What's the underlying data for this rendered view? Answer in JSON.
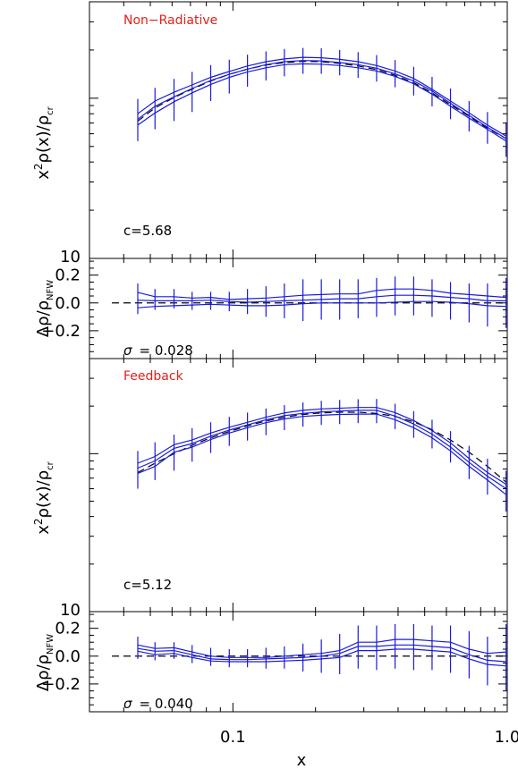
{
  "colors": {
    "series": "#1a1adc",
    "title": "#e0201c",
    "reference": "#000000"
  },
  "xaxis": {
    "label": "x",
    "scale": "log",
    "range": [
      0.03,
      1.0
    ],
    "ticks": [
      {
        "v": 0.1,
        "label": "0.1"
      },
      {
        "v": 1.0,
        "label": "1.0"
      }
    ]
  },
  "chart_data": [
    {
      "type": "line",
      "title": "Non−Radiative",
      "ylabel": "x²ρ(x)/ρcr",
      "ylabel_main": "x",
      "ylabel_sup": "2",
      "ylabel_rest": "ρ(x)/ρ",
      "ylabel_sub": "cr",
      "yscale": "log",
      "ylim": [
        10,
        400
      ],
      "ytick_label": "10",
      "annotation": "c=5.68",
      "x": [
        0.045,
        0.052,
        0.061,
        0.071,
        0.083,
        0.097,
        0.113,
        0.132,
        0.154,
        0.18,
        0.21,
        0.245,
        0.286,
        0.334,
        0.39,
        0.456,
        0.532,
        0.621,
        0.726,
        0.847,
        0.99
      ],
      "series": [
        {
          "values": [
            80,
            96,
            109,
            121,
            135,
            147,
            159,
            169,
            176,
            180,
            179,
            175,
            169,
            160,
            148,
            133,
            114,
            96,
            81,
            68,
            58
          ]
        },
        {
          "values": [
            74,
            89,
            102,
            115,
            129,
            141,
            152,
            162,
            169,
            172,
            171,
            167,
            162,
            154,
            142,
            128,
            111,
            93,
            78,
            66,
            56
          ]
        },
        {
          "values": [
            68,
            81,
            95,
            108,
            122,
            135,
            146,
            155,
            162,
            164,
            163,
            160,
            155,
            148,
            137,
            123,
            106,
            89,
            75,
            64,
            54
          ]
        }
      ],
      "reference": [
        72,
        87,
        101,
        114,
        128,
        141,
        152,
        161,
        167,
        170,
        169,
        165,
        159,
        151,
        139,
        125,
        108,
        91,
        77,
        65,
        56
      ],
      "error_bars": [
        [
          54,
          99
        ],
        [
          64,
          116
        ],
        [
          72,
          132
        ],
        [
          82,
          146
        ],
        [
          96,
          161
        ],
        [
          107,
          174
        ],
        [
          118,
          187
        ],
        [
          129,
          196
        ],
        [
          137,
          203
        ],
        [
          142,
          206
        ],
        [
          142,
          205
        ],
        [
          139,
          200
        ],
        [
          134,
          194
        ],
        [
          127,
          186
        ],
        [
          117,
          173
        ],
        [
          104,
          157
        ],
        [
          89,
          136
        ],
        [
          74,
          115
        ],
        [
          62,
          96
        ],
        [
          52,
          82
        ],
        [
          43,
          70
        ]
      ]
    },
    {
      "type": "line",
      "ylabel": "Δρ/ρNFW",
      "ylabel_main": "Δρ/ρ",
      "ylabel_sub": "NFW",
      "ylim": [
        -0.4,
        0.32
      ],
      "yticks": [
        {
          "v": 0.2,
          "label": "0.2"
        },
        {
          "v": 0.0,
          "label": "0.0"
        },
        {
          "v": -0.2,
          "label": "−0.2"
        }
      ],
      "annotation_symbol": "σ",
      "annotation_value": "= 0.028",
      "x": [
        0.045,
        0.052,
        0.061,
        0.071,
        0.083,
        0.097,
        0.113,
        0.132,
        0.154,
        0.18,
        0.21,
        0.245,
        0.286,
        0.334,
        0.39,
        0.456,
        0.532,
        0.621,
        0.726,
        0.847,
        0.99
      ],
      "series": [
        {
          "values": [
            0.075,
            0.045,
            0.045,
            0.035,
            0.04,
            0.025,
            0.03,
            0.035,
            0.045,
            0.055,
            0.06,
            0.065,
            0.065,
            0.09,
            0.1,
            0.1,
            0.09,
            0.07,
            0.06,
            0.05,
            0.04
          ]
        },
        {
          "values": [
            0.02,
            0.015,
            0.015,
            0.015,
            0.02,
            0.01,
            0.005,
            0.01,
            0.015,
            0.02,
            0.025,
            0.03,
            0.03,
            0.045,
            0.055,
            0.055,
            0.05,
            0.04,
            0.03,
            0.015,
            0.015
          ]
        },
        {
          "values": [
            -0.035,
            -0.025,
            -0.02,
            -0.015,
            -0.01,
            -0.015,
            -0.02,
            -0.02,
            -0.015,
            -0.005,
            0.0,
            0.0,
            0.0,
            0.0,
            0.005,
            0.01,
            0.01,
            0.005,
            -0.005,
            -0.02,
            -0.025
          ]
        }
      ],
      "reference": [
        0,
        0,
        0,
        0,
        0,
        0,
        0,
        0,
        0,
        0,
        0,
        0,
        0,
        0,
        0,
        0,
        0,
        0,
        0,
        0,
        0
      ],
      "error_bars": [
        [
          -0.08,
          0.14
        ],
        [
          -0.05,
          0.1
        ],
        [
          -0.04,
          0.1
        ],
        [
          -0.05,
          0.08
        ],
        [
          -0.05,
          0.08
        ],
        [
          -0.06,
          0.08
        ],
        [
          -0.08,
          0.1
        ],
        [
          -0.1,
          0.12
        ],
        [
          -0.11,
          0.14
        ],
        [
          -0.13,
          0.17
        ],
        [
          -0.12,
          0.17
        ],
        [
          -0.12,
          0.17
        ],
        [
          -0.11,
          0.17
        ],
        [
          -0.1,
          0.18
        ],
        [
          -0.09,
          0.19
        ],
        [
          -0.09,
          0.19
        ],
        [
          -0.1,
          0.17
        ],
        [
          -0.12,
          0.15
        ],
        [
          -0.14,
          0.14
        ],
        [
          -0.17,
          0.14
        ],
        [
          -0.18,
          0.18
        ]
      ]
    },
    {
      "type": "line",
      "title": "Feedback",
      "ylabel": "x²ρ(x)/ρcr",
      "ylabel_main": "x",
      "ylabel_sup": "2",
      "ylabel_rest": "ρ(x)/ρ",
      "ylabel_sub": "cr",
      "yscale": "log",
      "ylim": [
        10,
        400
      ],
      "ytick_label": "10",
      "annotation": "c=5.12",
      "x": [
        0.045,
        0.052,
        0.061,
        0.071,
        0.083,
        0.097,
        0.113,
        0.132,
        0.154,
        0.18,
        0.21,
        0.245,
        0.286,
        0.334,
        0.39,
        0.456,
        0.532,
        0.621,
        0.726,
        0.847,
        0.99
      ],
      "series": [
        {
          "values": [
            87,
            96,
            114,
            122,
            135,
            147,
            158,
            170,
            181,
            188,
            192,
            194,
            196,
            196,
            182,
            162,
            140,
            117,
            93,
            76,
            64
          ]
        },
        {
          "values": [
            81,
            90,
            108,
            116,
            129,
            141,
            152,
            164,
            174,
            180,
            184,
            186,
            188,
            188,
            173,
            154,
            133,
            110,
            88,
            72,
            60
          ]
        },
        {
          "values": [
            75,
            83,
            102,
            110,
            123,
            135,
            146,
            157,
            166,
            172,
            175,
            177,
            178,
            178,
            164,
            146,
            126,
            104,
            83,
            68,
            55
          ]
        }
      ],
      "reference": [
        76,
        87,
        100,
        113,
        126,
        138,
        150,
        161,
        170,
        177,
        181,
        183,
        183,
        180,
        172,
        159,
        142,
        122,
        102,
        83,
        66
      ],
      "error_bars": [
        [
          60,
          104
        ],
        [
          68,
          118
        ],
        [
          78,
          132
        ],
        [
          89,
          145
        ],
        [
          101,
          158
        ],
        [
          112,
          171
        ],
        [
          121,
          182
        ],
        [
          131,
          193
        ],
        [
          141,
          203
        ],
        [
          148,
          211
        ],
        [
          152,
          216
        ],
        [
          154,
          219
        ],
        [
          156,
          221
        ],
        [
          156,
          222
        ],
        [
          143,
          207
        ],
        [
          126,
          186
        ],
        [
          108,
          164
        ],
        [
          88,
          139
        ],
        [
          69,
          112
        ],
        [
          55,
          93
        ],
        [
          43,
          78
        ]
      ]
    },
    {
      "type": "line",
      "ylabel": "Δρ/ρNFW",
      "ylabel_main": "Δρ/ρ",
      "ylabel_sub": "NFW",
      "ylim": [
        -0.4,
        0.32
      ],
      "yticks": [
        {
          "v": 0.2,
          "label": "0.2"
        },
        {
          "v": 0.0,
          "label": "0.0"
        },
        {
          "v": -0.2,
          "label": "−0.2"
        }
      ],
      "annotation_symbol": "σ",
      "annotation_value": "= 0.040",
      "x": [
        0.045,
        0.052,
        0.061,
        0.071,
        0.083,
        0.097,
        0.113,
        0.132,
        0.154,
        0.18,
        0.21,
        0.245,
        0.286,
        0.334,
        0.39,
        0.456,
        0.532,
        0.621,
        0.726,
        0.847,
        0.99
      ],
      "series": [
        {
          "values": [
            0.08,
            0.055,
            0.06,
            0.03,
            0.0,
            -0.01,
            -0.01,
            -0.01,
            0.0,
            0.01,
            0.02,
            0.04,
            0.1,
            0.1,
            0.12,
            0.12,
            0.11,
            0.1,
            0.05,
            0.02,
            0.03
          ]
        },
        {
          "values": [
            0.055,
            0.035,
            0.04,
            0.01,
            -0.02,
            -0.025,
            -0.025,
            -0.02,
            -0.015,
            -0.01,
            0.0,
            0.02,
            0.07,
            0.07,
            0.08,
            0.08,
            0.07,
            0.06,
            0.01,
            -0.03,
            -0.04
          ]
        },
        {
          "values": [
            0.035,
            0.01,
            0.02,
            -0.01,
            -0.035,
            -0.04,
            -0.04,
            -0.04,
            -0.035,
            -0.03,
            -0.02,
            -0.01,
            0.04,
            0.04,
            0.05,
            0.05,
            0.04,
            0.03,
            -0.02,
            -0.06,
            -0.07
          ]
        }
      ],
      "reference": [
        0,
        0,
        0,
        0,
        0,
        0,
        0,
        0,
        0,
        0,
        0,
        0,
        0,
        0,
        0,
        0,
        0,
        0,
        0,
        0,
        0
      ],
      "error_bars": [
        [
          -0.02,
          0.14
        ],
        [
          -0.03,
          0.1
        ],
        [
          -0.02,
          0.1
        ],
        [
          -0.05,
          0.08
        ],
        [
          -0.07,
          0.06
        ],
        [
          -0.08,
          0.05
        ],
        [
          -0.08,
          0.05
        ],
        [
          -0.09,
          0.06
        ],
        [
          -0.09,
          0.07
        ],
        [
          -0.11,
          0.09
        ],
        [
          -0.12,
          0.12
        ],
        [
          -0.13,
          0.16
        ],
        [
          -0.09,
          0.22
        ],
        [
          -0.1,
          0.22
        ],
        [
          -0.09,
          0.23
        ],
        [
          -0.1,
          0.23
        ],
        [
          -0.1,
          0.22
        ],
        [
          -0.12,
          0.22
        ],
        [
          -0.16,
          0.18
        ],
        [
          -0.21,
          0.14
        ],
        [
          -0.25,
          0.23
        ]
      ]
    }
  ]
}
